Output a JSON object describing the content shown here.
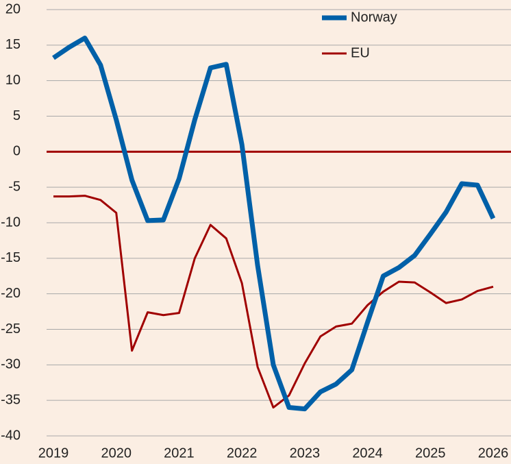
{
  "chart_data": {
    "type": "line",
    "x": [
      2019,
      2019.25,
      2019.5,
      2019.75,
      2020,
      2020.25,
      2020.5,
      2020.75,
      2021,
      2021.25,
      2021.5,
      2021.75,
      2022,
      2022.25,
      2022.5,
      2022.75,
      2023,
      2023.25,
      2023.5,
      2023.75,
      2024,
      2024.25,
      2024.5,
      2024.75,
      2025,
      2025.25,
      2025.5,
      2025.75,
      2026
    ],
    "series": [
      {
        "name": "Norway",
        "color": "#0060a8",
        "width": 7,
        "values": [
          13.2,
          14.7,
          16,
          12.2,
          4.5,
          -4,
          -9.7,
          -9.6,
          -3.8,
          4.5,
          11.8,
          12.3,
          1,
          -16,
          -30,
          -36,
          -36.2,
          -33.8,
          -32.7,
          -30.7,
          -24,
          -17.5,
          -16.3,
          -14.6,
          -11.6,
          -8.5,
          -4.5,
          -4.7,
          -9.4
        ]
      },
      {
        "name": "EU",
        "color": "#a00000",
        "width": 3,
        "values": [
          -6.3,
          -6.3,
          -6.2,
          -6.8,
          -8.6,
          -28,
          -22.6,
          -23,
          -22.7,
          -15,
          -10.3,
          -12.2,
          -18.5,
          -30.3,
          -36,
          -34.3,
          -29.8,
          -26,
          -24.6,
          -24.2,
          -21.6,
          -19.7,
          -18.3,
          -18.4,
          -19.8,
          -21.3,
          -20.8,
          -19.6,
          -19
        ]
      }
    ],
    "xlim": [
      2019,
      2026
    ],
    "xticks": [
      2019,
      2020,
      2021,
      2022,
      2023,
      2024,
      2025,
      2026
    ],
    "ylim": [
      -40,
      20
    ],
    "yticks": [
      -40,
      -35,
      -30,
      -25,
      -20,
      -15,
      -10,
      -5,
      0,
      5,
      10,
      15,
      20
    ],
    "grid": true,
    "zero_line_color": "#a00000",
    "legend": "upper right"
  }
}
